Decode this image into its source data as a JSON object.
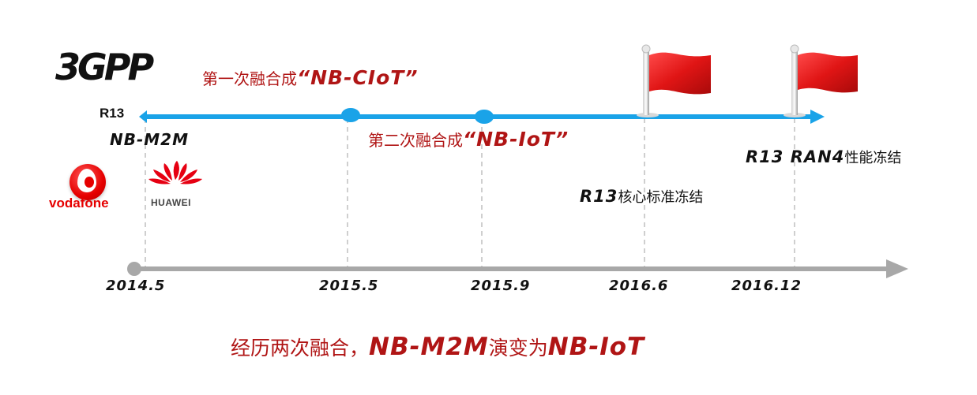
{
  "logos": {
    "threegpp": {
      "text": "3GPP",
      "icon": "3gpp-logo-icon"
    },
    "vodafone": {
      "text": "vodafone",
      "icon": "vodafone-logo-icon",
      "color": "#e60000"
    },
    "huawei": {
      "text": "HUAWEI",
      "icon": "huawei-logo-icon",
      "color": "#e60012"
    }
  },
  "release_label": "R13",
  "origin_label": "NB-M2M",
  "merges": [
    {
      "prefix": "第一次融合成",
      "name": "“NB-CIoT”"
    },
    {
      "prefix": "第二次融合成",
      "name": "“NB-IoT”"
    }
  ],
  "milestones": {
    "core": {
      "en": "R13",
      "zh": "核心标准冻结",
      "icon": "red-flag-icon"
    },
    "ran": {
      "en": "R13 RAN4",
      "zh": "性能冻结",
      "icon": "red-flag-icon"
    }
  },
  "timeline": {
    "dates": [
      "2014.5",
      "2015.5",
      "2015.9",
      "2016.6",
      "2016.12"
    ],
    "colors": {
      "upper_arrow": "#1aa3e8",
      "lower_arrow": "#a8a8a8",
      "text_red": "#b01515",
      "flag": "#d81e1e"
    }
  },
  "summary": {
    "part1": "经历两次融合，",
    "part2": "NB-M2M",
    "part3": "演变为",
    "part4": "NB-IoT"
  }
}
